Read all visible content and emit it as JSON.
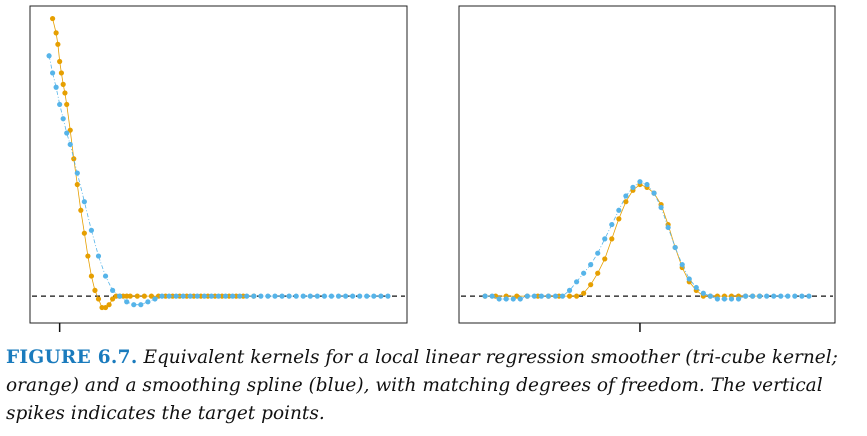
{
  "caption": {
    "label": "FIGURE 6.7.",
    "text": "Equivalent kernels for a local linear regression smoother (tri-cube kernel; orange) and a smoothing spline (blue), with matching degrees of freedom. The vertical spikes indicates the target points."
  },
  "colors": {
    "orange": "#e69f00",
    "blue": "#56b4e9",
    "axis": "#222222"
  },
  "chart_data": [
    {
      "type": "scatter",
      "title": "",
      "xlabel": "",
      "ylabel": "",
      "xlim": [
        0,
        1
      ],
      "ylim": [
        -0.08,
        1.0
      ],
      "grid": false,
      "target_x": 0.05,
      "reference_line_y": 0,
      "series": [
        {
          "color": "orange",
          "x": [
            0.03,
            0.04,
            0.045,
            0.05,
            0.055,
            0.06,
            0.065,
            0.07,
            0.08,
            0.09,
            0.1,
            0.11,
            0.12,
            0.13,
            0.14,
            0.15,
            0.16,
            0.17,
            0.18,
            0.19,
            0.2,
            0.21,
            0.22,
            0.23,
            0.24,
            0.25,
            0.27,
            0.29,
            0.31,
            0.33,
            0.35,
            0.37,
            0.39,
            0.41,
            0.43,
            0.45,
            0.47,
            0.49,
            0.51,
            0.53,
            0.55,
            0.57,
            0.6
          ],
          "y": [
            0.97,
            0.92,
            0.88,
            0.82,
            0.78,
            0.74,
            0.71,
            0.67,
            0.58,
            0.48,
            0.39,
            0.3,
            0.22,
            0.14,
            0.07,
            0.02,
            -0.01,
            -0.04,
            -0.04,
            -0.03,
            -0.01,
            0,
            0,
            0,
            0,
            0,
            0,
            0,
            0,
            0,
            0,
            0,
            0,
            0,
            0,
            0,
            0,
            0,
            0,
            0,
            0,
            0,
            0
          ]
        },
        {
          "color": "blue",
          "x": [
            0.02,
            0.03,
            0.04,
            0.05,
            0.06,
            0.07,
            0.08,
            0.1,
            0.12,
            0.14,
            0.16,
            0.18,
            0.2,
            0.22,
            0.24,
            0.26,
            0.28,
            0.3,
            0.32,
            0.34,
            0.36,
            0.38,
            0.4,
            0.42,
            0.44,
            0.46,
            0.48,
            0.5,
            0.52,
            0.54,
            0.56,
            0.58,
            0.6,
            0.62,
            0.64,
            0.66,
            0.68,
            0.7,
            0.72,
            0.74,
            0.76,
            0.78,
            0.8,
            0.82,
            0.84,
            0.86,
            0.88,
            0.9,
            0.92,
            0.94,
            0.96,
            0.98
          ],
          "y": [
            0.84,
            0.78,
            0.73,
            0.67,
            0.62,
            0.57,
            0.53,
            0.43,
            0.33,
            0.23,
            0.14,
            0.07,
            0.02,
            0,
            -0.02,
            -0.03,
            -0.03,
            -0.02,
            -0.01,
            0,
            0,
            0,
            0,
            0,
            0,
            0,
            0,
            0,
            0,
            0,
            0,
            0,
            0,
            0,
            0,
            0,
            0,
            0,
            0,
            0,
            0,
            0,
            0,
            0,
            0,
            0,
            0,
            0,
            0,
            0,
            0,
            0
          ]
        }
      ]
    },
    {
      "type": "scatter",
      "title": "",
      "xlabel": "",
      "ylabel": "",
      "xlim": [
        0,
        1
      ],
      "ylim": [
        -0.08,
        1.0
      ],
      "grid": false,
      "target_x": 0.48,
      "reference_line_y": 0,
      "series": [
        {
          "color": "orange",
          "x": [
            0.04,
            0.07,
            0.1,
            0.13,
            0.16,
            0.19,
            0.22,
            0.25,
            0.28,
            0.3,
            0.32,
            0.34,
            0.36,
            0.38,
            0.4,
            0.42,
            0.44,
            0.46,
            0.48,
            0.5,
            0.52,
            0.54,
            0.56,
            0.58,
            0.6,
            0.62,
            0.64,
            0.66,
            0.68,
            0.7,
            0.72,
            0.74,
            0.76,
            0.78,
            0.8,
            0.82
          ],
          "y": [
            0,
            0,
            0,
            0,
            0,
            0,
            0,
            0,
            0,
            0,
            0.01,
            0.04,
            0.08,
            0.13,
            0.2,
            0.27,
            0.33,
            0.37,
            0.39,
            0.38,
            0.36,
            0.32,
            0.25,
            0.17,
            0.1,
            0.05,
            0.02,
            0,
            0,
            0,
            0,
            0,
            0,
            0,
            0,
            0
          ]
        },
        {
          "color": "blue",
          "x": [
            0.04,
            0.06,
            0.08,
            0.1,
            0.12,
            0.14,
            0.16,
            0.18,
            0.2,
            0.22,
            0.24,
            0.26,
            0.28,
            0.3,
            0.32,
            0.34,
            0.36,
            0.38,
            0.4,
            0.42,
            0.44,
            0.46,
            0.48,
            0.5,
            0.52,
            0.54,
            0.56,
            0.58,
            0.6,
            0.62,
            0.64,
            0.66,
            0.68,
            0.7,
            0.72,
            0.74,
            0.76,
            0.78,
            0.8,
            0.82,
            0.84,
            0.86,
            0.88,
            0.9,
            0.92,
            0.94,
            0.96
          ],
          "y": [
            0,
            0,
            -0.01,
            -0.01,
            -0.01,
            -0.01,
            0,
            0,
            0,
            0,
            0,
            0,
            0.02,
            0.05,
            0.08,
            0.11,
            0.15,
            0.2,
            0.25,
            0.3,
            0.35,
            0.38,
            0.4,
            0.39,
            0.36,
            0.31,
            0.24,
            0.17,
            0.11,
            0.06,
            0.03,
            0.01,
            0,
            -0.01,
            -0.01,
            -0.01,
            -0.01,
            0,
            0,
            0,
            0,
            0,
            0,
            0,
            0,
            0,
            0
          ]
        }
      ]
    }
  ]
}
